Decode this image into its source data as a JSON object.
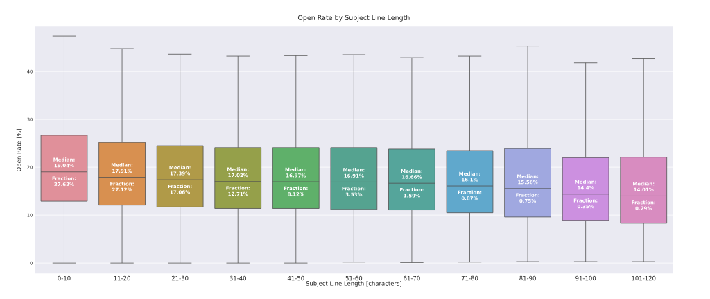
{
  "chart_data": {
    "type": "box",
    "title": "Open Rate by Subject Line Length",
    "xlabel": "Subject Line Length [characters]",
    "ylabel": "Open Rate [%]",
    "categories": [
      "0-10",
      "11-20",
      "21-30",
      "31-40",
      "41-50",
      "51-60",
      "61-70",
      "71-80",
      "81-90",
      "91-100",
      "101-120"
    ],
    "colors": [
      "#e0909a",
      "#d89050",
      "#b09a48",
      "#95a04a",
      "#5fb06a",
      "#55a390",
      "#55a59b",
      "#60a8cc",
      "#a0a8e0",
      "#cc90e0",
      "#d88cc0"
    ],
    "boxes": [
      {
        "low": 0,
        "q1": 12.9,
        "median": 19.04,
        "q3": 26.7,
        "high": 47.4
      },
      {
        "low": 0,
        "q1": 12.1,
        "median": 17.91,
        "q3": 25.2,
        "high": 44.8
      },
      {
        "low": 0,
        "q1": 11.7,
        "median": 17.39,
        "q3": 24.5,
        "high": 43.6
      },
      {
        "low": 0,
        "q1": 11.4,
        "median": 17.02,
        "q3": 24.1,
        "high": 43.2
      },
      {
        "low": 0,
        "q1": 11.4,
        "median": 16.97,
        "q3": 24.1,
        "high": 43.3
      },
      {
        "low": 0.2,
        "q1": 11.2,
        "median": 16.91,
        "q3": 24.1,
        "high": 43.5
      },
      {
        "low": 0.1,
        "q1": 11.1,
        "median": 16.66,
        "q3": 23.8,
        "high": 42.9
      },
      {
        "low": 0.2,
        "q1": 10.5,
        "median": 16.1,
        "q3": 23.5,
        "high": 43.2
      },
      {
        "low": 0.3,
        "q1": 9.6,
        "median": 15.56,
        "q3": 23.9,
        "high": 45.3
      },
      {
        "low": 0.3,
        "q1": 8.9,
        "median": 14.4,
        "q3": 22.0,
        "high": 41.8
      },
      {
        "low": 0.3,
        "q1": 8.3,
        "median": 14.01,
        "q3": 22.1,
        "high": 42.7
      }
    ],
    "ylim": [
      -2.2,
      49.4
    ],
    "yticks": [
      0,
      10,
      20,
      30,
      40
    ],
    "grid": "y",
    "annotations": [
      "Median: 19.04%",
      "Fraction: 27.62%",
      "Median: 17.91%",
      "Fraction: 27.12%",
      "Median: 17.39%",
      "Fraction: 17.06%",
      "Median: 17.02%",
      "Fraction: 12.71%",
      "Median: 16.97%",
      "Fraction: 8.12%",
      "Median: 16.91%",
      "Fraction: 3.53%",
      "Median: 16.66%",
      "Fraction: 1.59%",
      "Median: 16.1%",
      "Fraction: 0.87%",
      "Median: 15.56%",
      "Fraction: 0.75%",
      "Median: 14.4%",
      "Fraction: 0.35%",
      "Median: 14.01%",
      "Fraction: 0.29%"
    ]
  }
}
